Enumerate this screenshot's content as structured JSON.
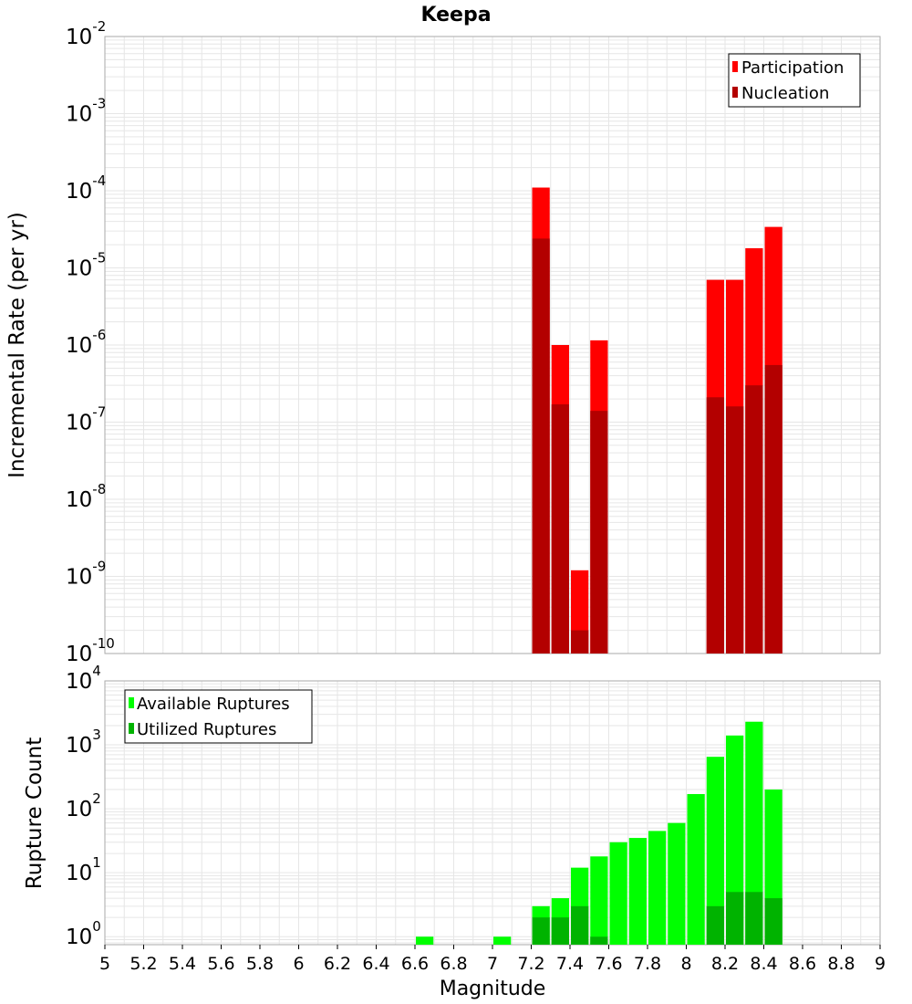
{
  "title": "Keepa",
  "colors": {
    "participation": "#ff0000",
    "nucleation": "#b30000",
    "available": "#00ff00",
    "utilized": "#00b300",
    "grid": "#e6e6e6"
  },
  "chart_data": [
    {
      "type": "bar",
      "ylabel": "Incremental Rate (per yr)",
      "yscale": "log",
      "ylim": [
        1e-10,
        0.01
      ],
      "xlim": [
        5,
        9
      ],
      "bin_width": 0.1,
      "grid": true,
      "legend_position": "top-right",
      "series": [
        {
          "name": "Participation",
          "x": [
            7.25,
            7.35,
            7.45,
            7.55,
            8.15,
            8.25,
            8.35,
            8.45
          ],
          "values": [
            0.00011,
            1e-06,
            1.2e-09,
            1.15e-06,
            7e-06,
            7e-06,
            1.8e-05,
            3.4e-05
          ]
        },
        {
          "name": "Nucleation",
          "x": [
            7.25,
            7.35,
            7.45,
            7.55,
            8.15,
            8.25,
            8.35,
            8.45
          ],
          "values": [
            2.4e-05,
            1.7e-07,
            2e-10,
            1.4e-07,
            2.1e-07,
            1.6e-07,
            3e-07,
            5.5e-07
          ]
        }
      ],
      "yticks": [
        {
          "base": "10",
          "exp": "-2"
        },
        {
          "base": "10",
          "exp": "-3"
        },
        {
          "base": "10",
          "exp": "-4"
        },
        {
          "base": "10",
          "exp": "-5"
        },
        {
          "base": "10",
          "exp": "-6"
        },
        {
          "base": "10",
          "exp": "-7"
        },
        {
          "base": "10",
          "exp": "-8"
        },
        {
          "base": "10",
          "exp": "-9"
        },
        {
          "base": "10",
          "exp": "-10"
        }
      ]
    },
    {
      "type": "bar",
      "ylabel": "Rupture Count",
      "xlabel": "Magnitude",
      "yscale": "log",
      "ylim": [
        0.75,
        10000
      ],
      "xlim": [
        5,
        9
      ],
      "bin_width": 0.1,
      "grid": true,
      "legend_position": "top-left",
      "series": [
        {
          "name": "Available Ruptures",
          "x": [
            6.65,
            7.05,
            7.25,
            7.35,
            7.45,
            7.55,
            7.65,
            7.75,
            7.85,
            7.95,
            8.05,
            8.15,
            8.25,
            8.35,
            8.45
          ],
          "values": [
            1,
            1,
            3,
            4,
            12,
            18,
            30,
            35,
            45,
            60,
            170,
            650,
            1400,
            2300,
            200
          ]
        },
        {
          "name": "Utilized Ruptures",
          "x": [
            7.25,
            7.35,
            7.45,
            7.55,
            8.15,
            8.25,
            8.35,
            8.45
          ],
          "values": [
            2,
            2,
            3,
            1,
            3,
            5,
            5,
            4
          ]
        }
      ],
      "yticks": [
        {
          "base": "10",
          "exp": "4"
        },
        {
          "base": "10",
          "exp": "3"
        },
        {
          "base": "10",
          "exp": "2"
        },
        {
          "base": "10",
          "exp": "1"
        },
        {
          "base": "10",
          "exp": "0"
        }
      ],
      "xticks": [
        "5",
        "5.2",
        "5.4",
        "5.6",
        "5.8",
        "6",
        "6.2",
        "6.4",
        "6.6",
        "6.8",
        "7",
        "7.2",
        "7.4",
        "7.6",
        "7.8",
        "8",
        "8.2",
        "8.4",
        "8.6",
        "8.8",
        "9"
      ]
    }
  ]
}
